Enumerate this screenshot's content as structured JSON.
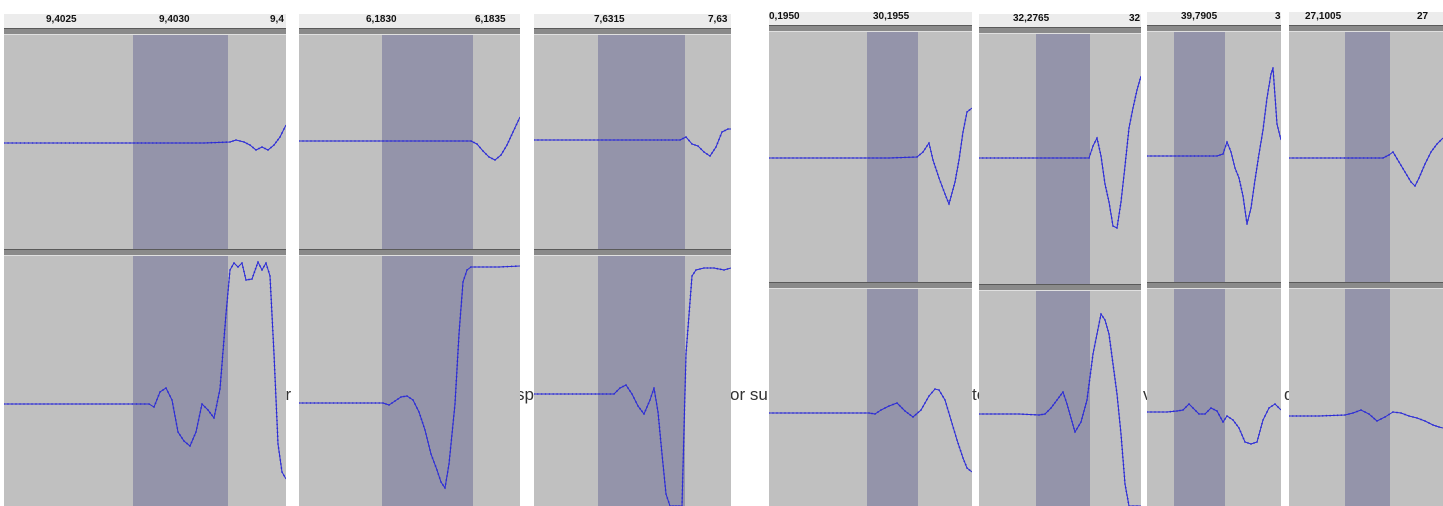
{
  "background_text": [
    "ur",
    "sp",
    "or su",
    "te",
    "v",
    "d"
  ],
  "panels": [
    {
      "name": "panel-1",
      "ticks": [
        "9,4025",
        "9,4030",
        "9,4"
      ],
      "waveform_color": "#2b2bd6",
      "selection_color": "#9494aa"
    },
    {
      "name": "panel-2",
      "ticks": [
        "6,1830",
        "6,1835"
      ],
      "waveform_color": "#2b2bd6",
      "selection_color": "#9494aa"
    },
    {
      "name": "panel-3",
      "ticks": [
        "7,6315",
        "7,63"
      ],
      "waveform_color": "#2b2bd6",
      "selection_color": "#9494aa"
    },
    {
      "name": "panel-4",
      "ticks": [
        "0,1950",
        "30,1955"
      ],
      "waveform_color": "#2b2bd6",
      "selection_color": "#9494aa"
    },
    {
      "name": "panel-5",
      "ticks": [
        "32,2765",
        "32"
      ],
      "waveform_color": "#2b2bd6",
      "selection_color": "#9494aa"
    },
    {
      "name": "panel-6",
      "ticks": [
        "39,7905",
        "3"
      ],
      "waveform_color": "#2b2bd6",
      "selection_color": "#9494aa"
    },
    {
      "name": "panel-7",
      "ticks": [
        "27,1005",
        "27"
      ],
      "waveform_color": "#2b2bd6",
      "selection_color": "#9494aa"
    }
  ]
}
